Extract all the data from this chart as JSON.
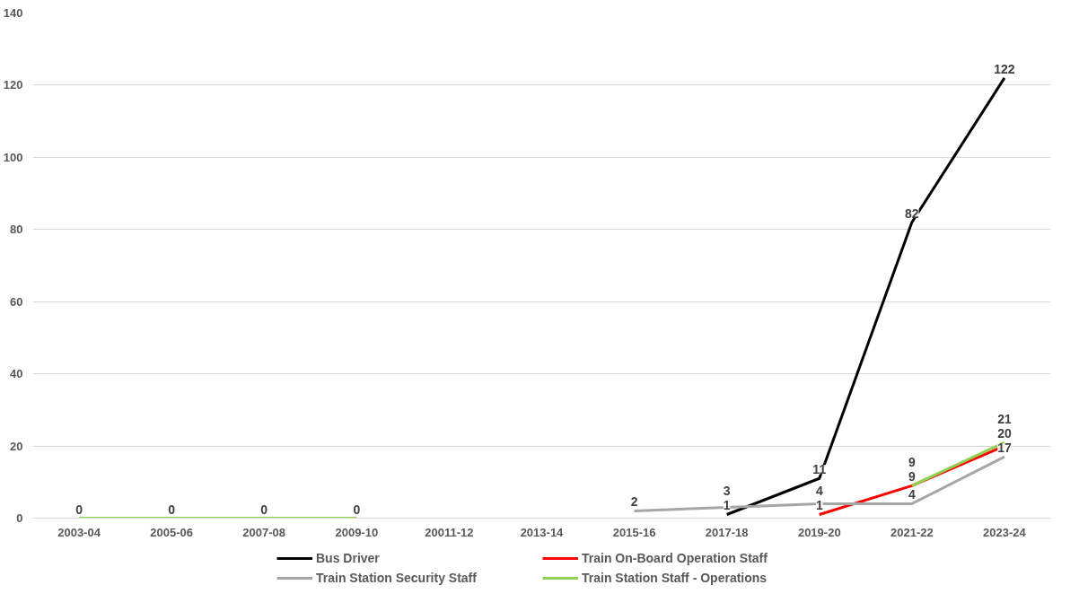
{
  "chart_data": {
    "type": "line",
    "categories": [
      "2003-04",
      "2005-06",
      "2007-08",
      "2009-10",
      "20011-12",
      "2013-14",
      "2015-16",
      "2017-18",
      "2019-20",
      "2021-22",
      "2023-24"
    ],
    "series": [
      {
        "name": "Bus Driver",
        "color": "#000000",
        "values": [
          null,
          null,
          null,
          null,
          null,
          null,
          null,
          1,
          11,
          82,
          122
        ]
      },
      {
        "name": "Train On-Board Operation Staff",
        "color": "#ff0000",
        "values": [
          null,
          null,
          null,
          null,
          null,
          null,
          null,
          null,
          1,
          9,
          20
        ]
      },
      {
        "name": "Train Station Security Staff",
        "color": "#a6a6a6",
        "values": [
          null,
          null,
          null,
          null,
          null,
          null,
          2,
          3,
          4,
          4,
          17
        ]
      },
      {
        "name": "Train Station Staff - Operations",
        "color": "#92d050",
        "values": [
          0,
          0,
          0,
          0,
          null,
          null,
          null,
          null,
          null,
          9,
          21
        ]
      }
    ],
    "ylim": [
      0,
      140
    ],
    "yticks": [
      0,
      20,
      40,
      60,
      80,
      100,
      120,
      140
    ],
    "grid": "y",
    "legend": "bottom",
    "data_labels": true,
    "marker": "none",
    "line_style": "solid"
  }
}
